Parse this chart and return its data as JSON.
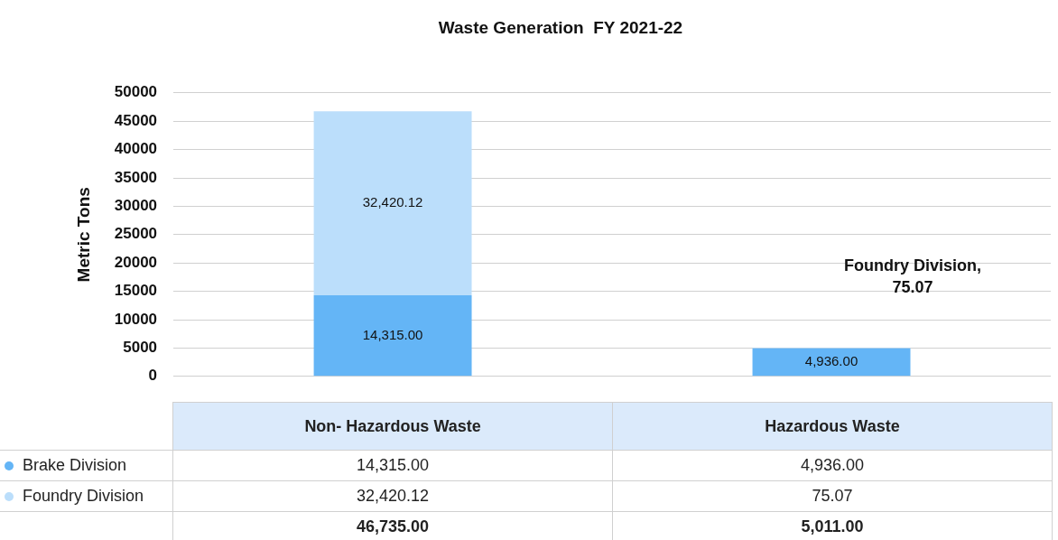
{
  "chart_data": {
    "type": "bar",
    "title": "Waste Generation  FY 2021-22",
    "ylabel": "Metric Tons",
    "categories": [
      "Non- Hazardous Waste",
      "Hazardous Waste"
    ],
    "stacked": true,
    "ylim": [
      0,
      50000
    ],
    "yticks": [
      0,
      5000,
      10000,
      15000,
      20000,
      25000,
      30000,
      35000,
      40000,
      45000,
      50000
    ],
    "grid": "y",
    "legend": "bottom left",
    "series": [
      {
        "name": "Brake Division",
        "color": "#64b5f6",
        "values": [
          14315.0,
          4936.0
        ],
        "value_labels": [
          "14,315.00",
          "4,936.00"
        ]
      },
      {
        "name": "Foundry Division",
        "color": "#bbdefb",
        "values": [
          32420.12,
          75.07
        ],
        "value_labels": [
          "32,420.12",
          "75.07"
        ]
      }
    ],
    "annotations": [
      "Foundry Division, 75.07",
      "46,735.00",
      "5,011.00"
    ]
  }
}
